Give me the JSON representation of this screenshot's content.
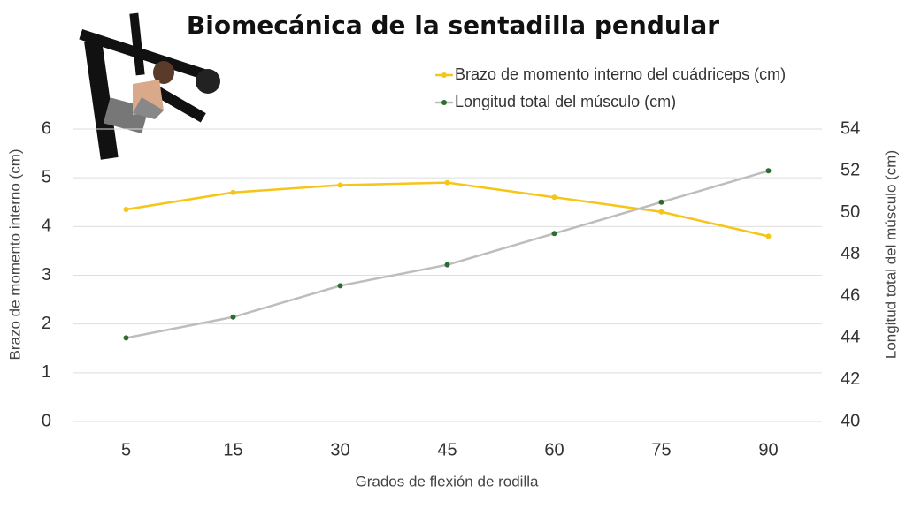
{
  "chart_data": {
    "type": "line",
    "title": "Biomecánica de la sentadilla pendular",
    "x_label": "Grados de flexión de rodilla",
    "y_label": "Brazo de momento interno (cm)",
    "y2_label": "Longitud total del músculo (cm)",
    "categories": [
      "5",
      "15",
      "30",
      "45",
      "60",
      "75",
      "90"
    ],
    "series": [
      {
        "name": "Brazo de momento interno del cuádriceps (cm)",
        "color": "#f5c518",
        "marker_color": "#f5c518",
        "values": [
          4.35,
          4.7,
          4.85,
          4.9,
          4.6,
          4.3,
          3.8
        ]
      },
      {
        "name": "Longitud total del músculo (cm)",
        "color": "#bdbdbd",
        "marker_color": "#2e6b2e",
        "axis": "y2",
        "values": [
          44,
          45,
          46.5,
          47.5,
          49,
          50.5,
          52
        ]
      }
    ],
    "ylim": [
      0,
      6
    ],
    "yticks": [
      0,
      1,
      2,
      3,
      4,
      5,
      6
    ],
    "y2lim": [
      40,
      54
    ],
    "y2ticks": [
      40,
      42,
      44,
      46,
      48,
      50,
      52,
      54
    ],
    "grid": true,
    "legend": "upper right"
  }
}
